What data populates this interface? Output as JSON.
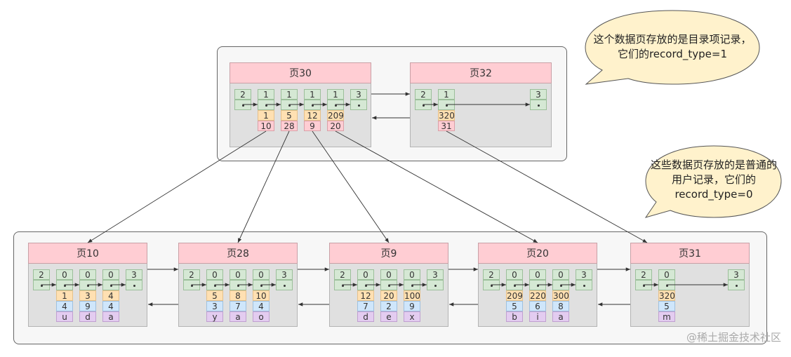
{
  "colors": {
    "header": "#ffcdd3",
    "body": "#e0e0e0",
    "record_header": "#d5e8d4",
    "key": "#ffe0b2",
    "page_no": "#ffcdd3",
    "col2": "#cfe6fb",
    "col3": "#e3ccf0"
  },
  "callouts": {
    "top": "这个数据页存放的是目录项记录，它们的record_type=1",
    "bottom": "这些数据页存放的是普通的用户记录，它们的record_type=0"
  },
  "watermark": "@稀土掘金技术社区",
  "directory_pages": [
    {
      "title": "页30",
      "infimum": "2",
      "supremum": "3",
      "records": [
        {
          "type": "1",
          "fields": [
            "1",
            "10"
          ]
        },
        {
          "type": "1",
          "fields": [
            "5",
            "28"
          ]
        },
        {
          "type": "1",
          "fields": [
            "12",
            "9"
          ]
        },
        {
          "type": "1",
          "fields": [
            "209",
            "20"
          ]
        }
      ]
    },
    {
      "title": "页32",
      "infimum": "2",
      "supremum": "3",
      "records": [
        {
          "type": "1",
          "fields": [
            "320",
            "31"
          ]
        }
      ]
    }
  ],
  "leaf_pages": [
    {
      "title": "页10",
      "infimum": "2",
      "supremum": "3",
      "records": [
        {
          "type": "0",
          "fields": [
            "1",
            "4",
            "u"
          ]
        },
        {
          "type": "0",
          "fields": [
            "3",
            "9",
            "d"
          ]
        },
        {
          "type": "0",
          "fields": [
            "4",
            "4",
            "a"
          ]
        }
      ]
    },
    {
      "title": "页28",
      "infimum": "2",
      "supremum": "3",
      "records": [
        {
          "type": "0",
          "fields": [
            "5",
            "3",
            "y"
          ]
        },
        {
          "type": "0",
          "fields": [
            "8",
            "7",
            "a"
          ]
        },
        {
          "type": "0",
          "fields": [
            "10",
            "4",
            "o"
          ]
        }
      ]
    },
    {
      "title": "页9",
      "infimum": "2",
      "supremum": "3",
      "records": [
        {
          "type": "0",
          "fields": [
            "12",
            "7",
            "d"
          ]
        },
        {
          "type": "0",
          "fields": [
            "20",
            "2",
            "e"
          ]
        },
        {
          "type": "0",
          "fields": [
            "100",
            "9",
            "x"
          ]
        }
      ]
    },
    {
      "title": "页20",
      "infimum": "2",
      "supremum": "3",
      "records": [
        {
          "type": "0",
          "fields": [
            "209",
            "5",
            "b"
          ]
        },
        {
          "type": "0",
          "fields": [
            "220",
            "6",
            "i"
          ]
        },
        {
          "type": "0",
          "fields": [
            "300",
            "8",
            "a"
          ]
        }
      ]
    },
    {
      "title": "页31",
      "infimum": "2",
      "supremum": "3",
      "records": [
        {
          "type": "0",
          "fields": [
            "320",
            "5",
            "m"
          ]
        }
      ]
    }
  ]
}
